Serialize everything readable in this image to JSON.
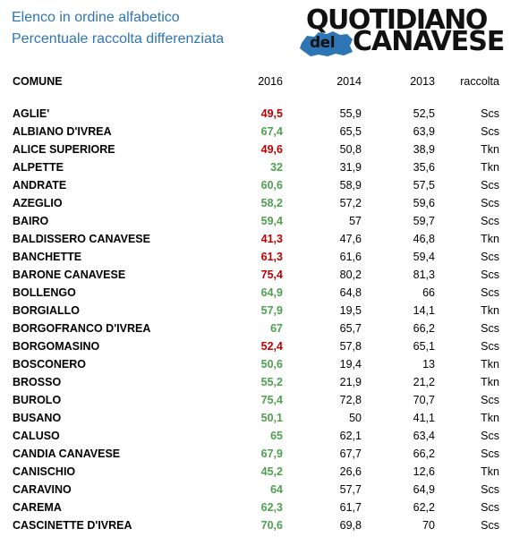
{
  "header": {
    "title_line1": "Elenco in ordine alfabetico",
    "title_line2": "Percentuale raccolta differenziata"
  },
  "logo": {
    "line1": "QUOTIDIANO",
    "word_small": "del",
    "line2": "CANAVESE",
    "map_icon": "piedmont-map-icon",
    "map_color": "#2e75b6"
  },
  "colors": {
    "title": "#2e75b6",
    "below_target": "#c00000",
    "above_target": "#4ea04e"
  },
  "table": {
    "columns": [
      "COMUNE",
      "2016",
      "2014",
      "2013",
      "raccolta"
    ],
    "rows": [
      {
        "comune": "AGLIE'",
        "y2016": "49,5",
        "y2014": "55,9",
        "y2013": "52,5",
        "raccolta": "Scs",
        "status": "red"
      },
      {
        "comune": "ALBIANO D'IVREA",
        "y2016": "67,4",
        "y2014": "65,5",
        "y2013": "63,9",
        "raccolta": "Scs",
        "status": "green"
      },
      {
        "comune": "ALICE SUPERIORE",
        "y2016": "49,6",
        "y2014": "50,8",
        "y2013": "38,9",
        "raccolta": "Tkn",
        "status": "red"
      },
      {
        "comune": "ALPETTE",
        "y2016": "32",
        "y2014": "31,9",
        "y2013": "35,6",
        "raccolta": "Tkn",
        "status": "green"
      },
      {
        "comune": "ANDRATE",
        "y2016": "60,6",
        "y2014": "58,9",
        "y2013": "57,5",
        "raccolta": "Scs",
        "status": "green"
      },
      {
        "comune": "AZEGLIO",
        "y2016": "58,2",
        "y2014": "57,2",
        "y2013": "59,6",
        "raccolta": "Scs",
        "status": "green"
      },
      {
        "comune": "BAIRO",
        "y2016": "59,4",
        "y2014": "57",
        "y2013": "59,7",
        "raccolta": "Scs",
        "status": "green"
      },
      {
        "comune": "BALDISSERO CANAVESE",
        "y2016": "41,3",
        "y2014": "47,6",
        "y2013": "46,8",
        "raccolta": "Tkn",
        "status": "red"
      },
      {
        "comune": "BANCHETTE",
        "y2016": "61,3",
        "y2014": "61,6",
        "y2013": "59,4",
        "raccolta": "Scs",
        "status": "red"
      },
      {
        "comune": "BARONE CANAVESE",
        "y2016": "75,4",
        "y2014": "80,2",
        "y2013": "81,3",
        "raccolta": "Scs",
        "status": "red"
      },
      {
        "comune": "BOLLENGO",
        "y2016": "64,9",
        "y2014": "64,8",
        "y2013": "66",
        "raccolta": "Scs",
        "status": "green"
      },
      {
        "comune": "BORGIALLO",
        "y2016": "57,9",
        "y2014": "19,5",
        "y2013": "14,1",
        "raccolta": "Tkn",
        "status": "green"
      },
      {
        "comune": "BORGOFRANCO D'IVREA",
        "y2016": "67",
        "y2014": "65,7",
        "y2013": "66,2",
        "raccolta": "Scs",
        "status": "green"
      },
      {
        "comune": "BORGOMASINO",
        "y2016": "52,4",
        "y2014": "57,8",
        "y2013": "65,1",
        "raccolta": "Scs",
        "status": "red"
      },
      {
        "comune": "BOSCONERO",
        "y2016": "50,6",
        "y2014": "19,4",
        "y2013": "13",
        "raccolta": "Tkn",
        "status": "green"
      },
      {
        "comune": "BROSSO",
        "y2016": "55,2",
        "y2014": "21,9",
        "y2013": "21,2",
        "raccolta": "Tkn",
        "status": "green"
      },
      {
        "comune": "BUROLO",
        "y2016": "75,4",
        "y2014": "72,8",
        "y2013": "70,7",
        "raccolta": "Scs",
        "status": "green"
      },
      {
        "comune": "BUSANO",
        "y2016": "50,1",
        "y2014": "50",
        "y2013": "41,1",
        "raccolta": "Tkn",
        "status": "green"
      },
      {
        "comune": "CALUSO",
        "y2016": "65",
        "y2014": "62,1",
        "y2013": "63,4",
        "raccolta": "Scs",
        "status": "green"
      },
      {
        "comune": "CANDIA CANAVESE",
        "y2016": "67,9",
        "y2014": "67,7",
        "y2013": "66,2",
        "raccolta": "Scs",
        "status": "green"
      },
      {
        "comune": "CANISCHIO",
        "y2016": "45,2",
        "y2014": "26,6",
        "y2013": "12,6",
        "raccolta": "Tkn",
        "status": "green"
      },
      {
        "comune": "CARAVINO",
        "y2016": "64",
        "y2014": "57,7",
        "y2013": "64,9",
        "raccolta": "Scs",
        "status": "green"
      },
      {
        "comune": "CAREMA",
        "y2016": "62,3",
        "y2014": "61,7",
        "y2013": "62,2",
        "raccolta": "Scs",
        "status": "green"
      },
      {
        "comune": "CASCINETTE D'IVREA",
        "y2016": "70,6",
        "y2014": "69,8",
        "y2013": "70",
        "raccolta": "Scs",
        "status": "green"
      }
    ]
  }
}
